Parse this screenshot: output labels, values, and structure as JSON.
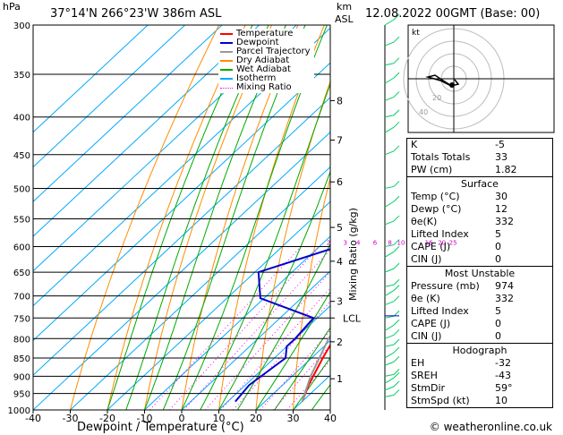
{
  "header": {
    "hpa": "hPa",
    "location": "37°14'N 266°23'W 386m ASL",
    "km": "km",
    "asl": "ASL",
    "datetime": "12.08.2022 00GMT (Base: 00)"
  },
  "legend": {
    "items": [
      {
        "label": "Temperature",
        "color": "#ff0000"
      },
      {
        "label": "Dewpoint",
        "color": "#0000cc"
      },
      {
        "label": "Parcel Trajectory",
        "color": "#999999"
      },
      {
        "label": "Dry Adiabat",
        "color": "#ff8c00"
      },
      {
        "label": "Wet Adiabat",
        "color": "#00aa00"
      },
      {
        "label": "Isotherm",
        "color": "#00aaff"
      },
      {
        "label": "Mixing Ratio",
        "color": "#ff00ff"
      }
    ]
  },
  "chart_data": {
    "type": "line",
    "xlabel": "Dewpoint / Temperature (°C)",
    "ylabel_right": "Mixing Ratio (g/kg)",
    "ylabel_left": "hPa",
    "xlim": [
      -40,
      40
    ],
    "ylim": [
      1000,
      300
    ],
    "y_scale": "log",
    "x_ticks": [
      "-40",
      "-30",
      "-20",
      "-10",
      "0",
      "10",
      "20",
      "30",
      "40"
    ],
    "y_ticks": [
      "300",
      "350",
      "400",
      "450",
      "500",
      "550",
      "600",
      "650",
      "700",
      "750",
      "800",
      "850",
      "900",
      "950",
      "1000"
    ],
    "km_ticks": [
      {
        "label": "8",
        "p": 380
      },
      {
        "label": "7",
        "p": 430
      },
      {
        "label": "6",
        "p": 490
      },
      {
        "label": "5",
        "p": 565
      },
      {
        "label": "4",
        "p": 628
      },
      {
        "label": "3",
        "p": 712
      },
      {
        "label": "LCL",
        "p": 750
      },
      {
        "label": "2",
        "p": 808
      },
      {
        "label": "1",
        "p": 907
      }
    ],
    "mixing_ratio_labels": [
      {
        "label": "2",
        "t": -7.5
      },
      {
        "label": "3",
        "t": -3
      },
      {
        "label": "4",
        "t": 0.5
      },
      {
        "label": "6",
        "t": 5
      },
      {
        "label": "8",
        "t": 9
      },
      {
        "label": "10",
        "t": 12
      },
      {
        "label": "16",
        "t": 19.5
      },
      {
        "label": "20",
        "t": 23
      },
      {
        "label": "25",
        "t": 26
      }
    ],
    "series": [
      {
        "name": "Temperature",
        "color": "#ff0000",
        "points": [
          [
            30,
            974
          ],
          [
            27,
            925
          ],
          [
            23,
            850
          ],
          [
            20.5,
            800
          ],
          [
            19,
            750
          ],
          [
            17.5,
            700
          ],
          [
            15,
            650
          ],
          [
            12,
            600
          ],
          [
            9,
            550
          ],
          [
            7,
            500
          ],
          [
            3,
            450
          ],
          [
            -1,
            400
          ],
          [
            -5,
            360
          ],
          [
            -8,
            330
          ],
          [
            -11,
            300
          ]
        ]
      },
      {
        "name": "Dewpoint",
        "color": "#0000cc",
        "points": [
          [
            12,
            974
          ],
          [
            11,
            925
          ],
          [
            13,
            850
          ],
          [
            10,
            820
          ],
          [
            10,
            800
          ],
          [
            9,
            750
          ],
          [
            -11,
            705
          ],
          [
            -19,
            650
          ],
          [
            -5,
            600
          ],
          [
            -20,
            520
          ],
          [
            -11,
            480
          ],
          [
            -27,
            400
          ],
          [
            -4,
            370
          ],
          [
            -17,
            350
          ],
          [
            -4,
            300
          ]
        ]
      },
      {
        "name": "Parcel Trajectory",
        "color": "#999999",
        "points": [
          [
            30,
            974
          ],
          [
            25,
            900
          ],
          [
            19,
            800
          ],
          [
            17,
            750
          ],
          [
            15,
            700
          ],
          [
            12,
            650
          ],
          [
            9,
            600
          ],
          [
            6,
            550
          ],
          [
            3,
            500
          ],
          [
            -1,
            450
          ],
          [
            -6,
            400
          ],
          [
            -12,
            350
          ],
          [
            -15,
            320
          ],
          [
            -17,
            300
          ]
        ]
      }
    ]
  },
  "wind_barbs_color": "#00cc66",
  "hodograph": {
    "label": "kt",
    "rings": [
      "20",
      "40"
    ]
  },
  "indices": {
    "rows": [
      {
        "k": "K",
        "v": "-5"
      },
      {
        "k": "Totals Totals",
        "v": "33"
      },
      {
        "k": "PW (cm)",
        "v": "1.82"
      }
    ]
  },
  "surface": {
    "title": "Surface",
    "rows": [
      {
        "k": "Temp (°C)",
        "v": "30"
      },
      {
        "k": "Dewp (°C)",
        "v": "12"
      },
      {
        "k": "θe(K)",
        "v": "332"
      },
      {
        "k": "Lifted Index",
        "v": "5"
      },
      {
        "k": "CAPE (J)",
        "v": "0"
      },
      {
        "k": "CIN (J)",
        "v": "0"
      }
    ]
  },
  "unstable": {
    "title": "Most Unstable",
    "rows": [
      {
        "k": "Pressure (mb)",
        "v": "974"
      },
      {
        "k": "θe (K)",
        "v": "332"
      },
      {
        "k": "Lifted Index",
        "v": "5"
      },
      {
        "k": "CAPE (J)",
        "v": "0"
      },
      {
        "k": "CIN (J)",
        "v": "0"
      }
    ]
  },
  "hodo_table": {
    "title": "Hodograph",
    "rows": [
      {
        "k": "EH",
        "v": "-32"
      },
      {
        "k": "SREH",
        "v": "-43"
      },
      {
        "k": "StmDir",
        "v": "59°"
      },
      {
        "k": "StmSpd (kt)",
        "v": "10"
      }
    ]
  },
  "footer": "© weatheronline.co.uk"
}
